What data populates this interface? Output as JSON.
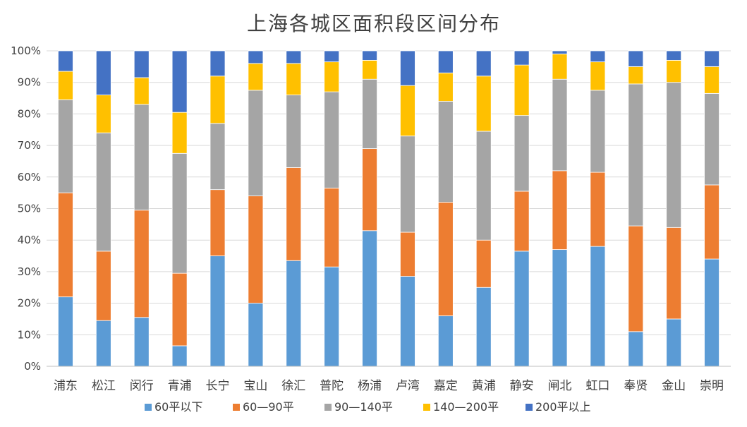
{
  "chart_data": {
    "type": "bar",
    "stacked": true,
    "percent": true,
    "title": "上海各城区面积段区间分布",
    "xlabel": "",
    "ylabel": "",
    "ylim": [
      0,
      100
    ],
    "y_ticks": [
      "0%",
      "10%",
      "20%",
      "30%",
      "40%",
      "50%",
      "60%",
      "70%",
      "80%",
      "90%",
      "100%"
    ],
    "grid": true,
    "legend_position": "bottom",
    "categories": [
      "浦东",
      "松江",
      "闵行",
      "青浦",
      "长宁",
      "宝山",
      "徐汇",
      "普陀",
      "杨浦",
      "卢湾",
      "嘉定",
      "黄浦",
      "静安",
      "闸北",
      "虹口",
      "奉贤",
      "金山",
      "崇明"
    ],
    "series": [
      {
        "name": "60平以下",
        "color": "#5b9bd5",
        "values": [
          22,
          14.5,
          15.5,
          6.5,
          35,
          20,
          33.5,
          31.5,
          43,
          28.5,
          16,
          25,
          36.5,
          37,
          38,
          11,
          15,
          34
        ]
      },
      {
        "name": "60—90平",
        "color": "#ed7d31",
        "values": [
          33,
          22,
          34,
          23,
          21,
          34,
          29.5,
          25,
          26,
          14,
          36,
          15,
          19,
          25,
          23.5,
          33.5,
          29,
          23.5
        ]
      },
      {
        "name": "90—140平",
        "color": "#a5a5a5",
        "values": [
          29.5,
          37.5,
          33.5,
          38,
          21,
          33.5,
          23,
          30.5,
          22,
          30.5,
          32,
          34.5,
          24,
          29,
          26,
          45,
          46,
          29
        ]
      },
      {
        "name": "140—200平",
        "color": "#ffc000",
        "values": [
          9,
          12,
          8.5,
          13,
          15,
          8.5,
          10,
          9.5,
          6,
          16,
          9,
          17.5,
          16,
          8,
          9,
          5.5,
          7,
          8.5
        ]
      },
      {
        "name": "200平以上",
        "color": "#4472c4",
        "values": [
          6.5,
          14,
          8.5,
          19.5,
          8,
          4,
          4,
          3.5,
          3,
          11,
          7,
          8,
          4.5,
          1,
          3.5,
          5,
          3,
          5
        ]
      }
    ]
  }
}
